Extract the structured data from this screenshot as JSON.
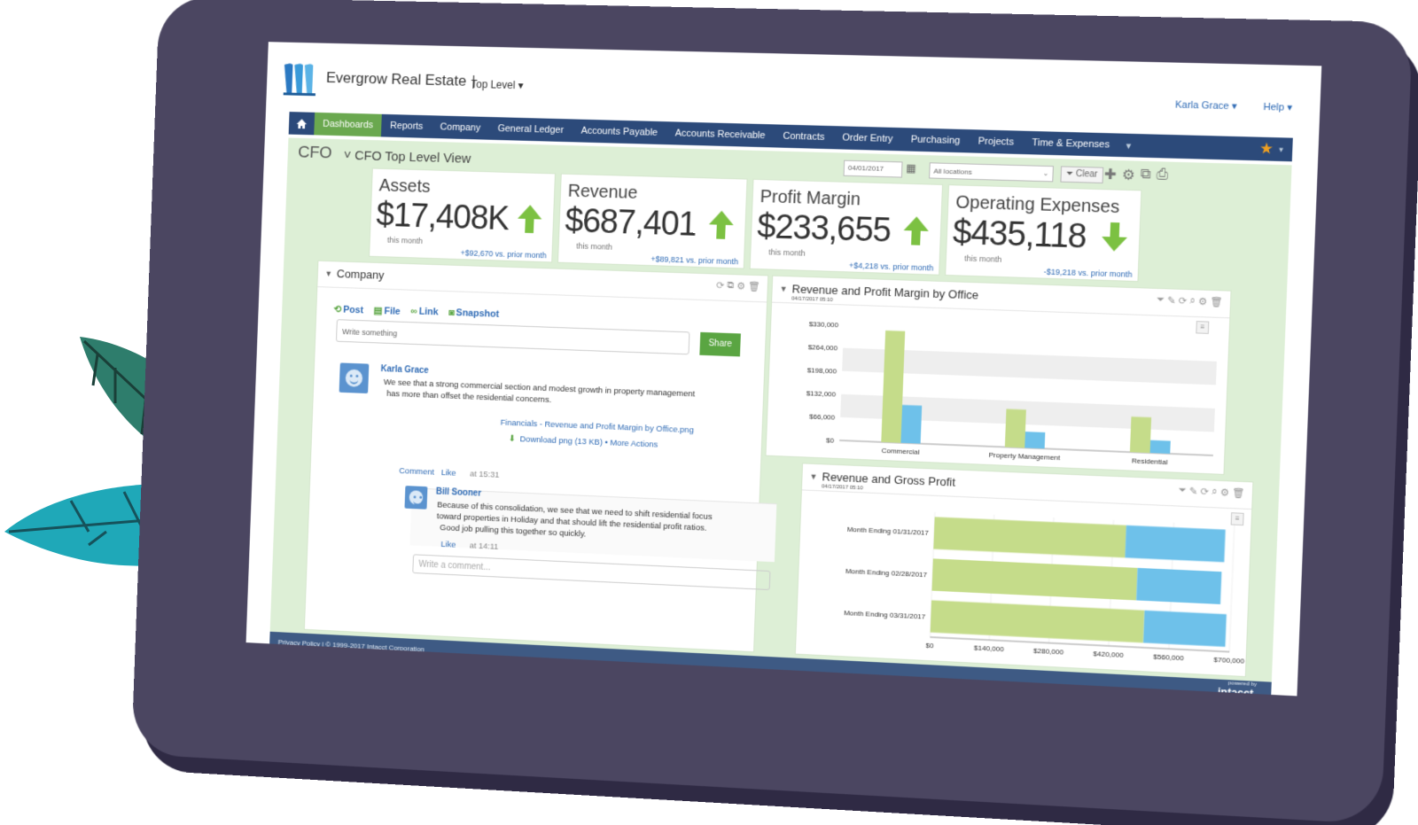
{
  "header": {
    "company": "Evergrow Real Estate",
    "level": "Top Level",
    "user": "Karla Grace",
    "help": "Help"
  },
  "nav": {
    "items": [
      "Dashboards",
      "Reports",
      "Company",
      "General Ledger",
      "Accounts Payable",
      "Accounts Receivable",
      "Contracts",
      "Order Entry",
      "Purchasing",
      "Projects",
      "Time & Expenses"
    ],
    "active": "Dashboards"
  },
  "toolbar": {
    "role": "CFO",
    "view": "CFO Top Level View",
    "date": "04/01/2017",
    "location": "All locations",
    "clear": "Clear"
  },
  "kpis": [
    {
      "title": "Assets",
      "value": "$17,408K",
      "sub": "this month",
      "compare": "+$92,670 vs. prior month",
      "trend": "up"
    },
    {
      "title": "Revenue",
      "value": "$687,401",
      "sub": "this month",
      "compare": "+$89,821 vs. prior month",
      "trend": "up"
    },
    {
      "title": "Profit Margin",
      "value": "$233,655",
      "sub": "this month",
      "compare": "+$4,218 vs. prior month",
      "trend": "up"
    },
    {
      "title": "Operating Expenses",
      "value": "$435,118",
      "sub": "this month",
      "compare": "-$19,218 vs. prior month",
      "trend": "down"
    }
  ],
  "company_panel": {
    "title": "Company",
    "tabs": [
      "Post",
      "File",
      "Link",
      "Snapshot"
    ],
    "write_placeholder": "Write something",
    "share": "Share",
    "post": {
      "author": "Karla Grace",
      "message_line1": "We see that a strong commercial section and modest growth in property management",
      "message_line2": "has more than offset the residential concerns.",
      "attachment": "Financials - Revenue and Profit Margin by Office.png",
      "download": "Download png (13 KB) • More Actions",
      "comment_label": "Comment",
      "like_label": "Like",
      "time": "at 15:31"
    },
    "reply": {
      "author": "Bill Sooner",
      "message_line1": "Because of this consolidation, we see that we need to shift residential focus",
      "message_line2": "toward properties in Holiday and that should lift the residential profit ratios.",
      "message_line3": "Good job pulling this together so quickly.",
      "like_label": "Like",
      "time": "at 14:11"
    },
    "comment_placeholder": "Write a comment..."
  },
  "chart_panels": {
    "rpm": {
      "title": "Revenue and Profit Margin by Office",
      "date": "04/17/2017 05:10"
    },
    "rgp": {
      "title": "Revenue and Gross Profit",
      "date": "04/17/2017 05:10"
    }
  },
  "chart_data": [
    {
      "type": "bar",
      "title": "Revenue and Profit Margin by Office",
      "categories": [
        "Commercial",
        "Property Management",
        "Residential"
      ],
      "series": [
        {
          "values": [
            318000,
            108000,
            100000
          ],
          "color": "#c5dc8a"
        },
        {
          "values": [
            108000,
            46000,
            36000
          ],
          "color": "#6ec1ea"
        }
      ],
      "ylim": [
        0,
        330000
      ],
      "yticks": [
        "$0",
        "$66,000",
        "$132,000",
        "$198,000",
        "$264,000",
        "$330,000"
      ],
      "grid": true
    },
    {
      "type": "bar",
      "orientation": "horizontal",
      "stacked": true,
      "title": "Revenue and Gross Profit",
      "categories": [
        "Month Ending 01/31/2017",
        "Month Ending 02/28/2017",
        "Month Ending 03/31/2017"
      ],
      "series": [
        {
          "values": [
            450000,
            480000,
            500000
          ],
          "color": "#c5dc8a"
        },
        {
          "values": [
            230000,
            195000,
            190000
          ],
          "color": "#6ec1ea"
        }
      ],
      "xlim": [
        0,
        700000
      ],
      "xticks": [
        "$0",
        "$140,000",
        "$280,000",
        "$420,000",
        "$560,000",
        "$700,000"
      ]
    }
  ],
  "footer": {
    "privacy": "Privacy Policy | © 1999-2017 Intacct Corporation",
    "powered": "powered by",
    "brand": "intacct."
  },
  "colors": {
    "nav": "#2c4a7a",
    "active": "#6aa84f",
    "dashboard_bg": "#ddefd6",
    "link": "#2f6bb5",
    "tablet": "#4b4661"
  }
}
